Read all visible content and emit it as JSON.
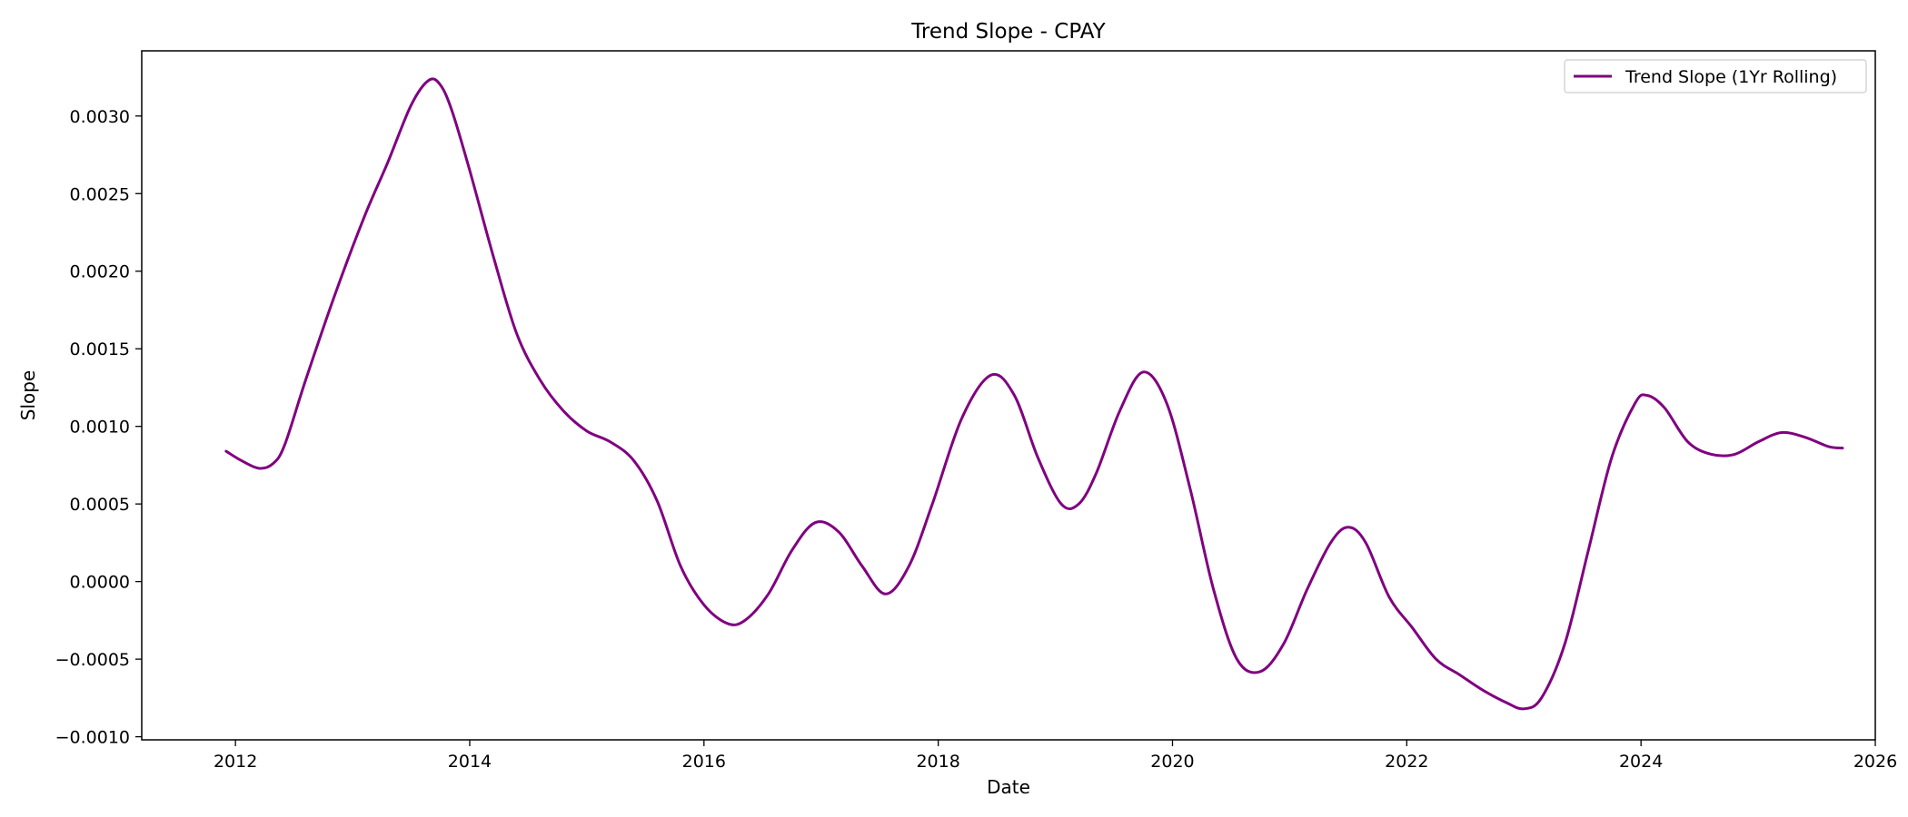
{
  "chart_data": {
    "type": "line",
    "title": "Trend Slope - CPAY",
    "xlabel": "Date",
    "ylabel": "Slope",
    "xlim": [
      2011.2,
      2026.0
    ],
    "ylim": [
      -0.00102,
      0.00342
    ],
    "x_ticks": [
      2012,
      2014,
      2016,
      2018,
      2020,
      2022,
      2024,
      2026
    ],
    "x_tick_labels": [
      "2012",
      "2014",
      "2016",
      "2018",
      "2020",
      "2022",
      "2024",
      "2026"
    ],
    "y_ticks": [
      -0.001,
      -0.0005,
      0.0,
      0.0005,
      0.001,
      0.0015,
      0.002,
      0.0025,
      0.003
    ],
    "y_tick_labels": [
      "−0.0010",
      "−0.0005",
      "0.0000",
      "0.0005",
      "0.0010",
      "0.0015",
      "0.0020",
      "0.0025",
      "0.0030"
    ],
    "grid": false,
    "legend_position": "top-right",
    "series": [
      {
        "name": "Trend Slope (1Yr Rolling)",
        "color": "#800080",
        "points": [
          [
            2011.92,
            0.00084
          ],
          [
            2012.05,
            0.00078
          ],
          [
            2012.2,
            0.00073
          ],
          [
            2012.32,
            0.00076
          ],
          [
            2012.42,
            0.00088
          ],
          [
            2012.6,
            0.0013
          ],
          [
            2012.85,
            0.00185
          ],
          [
            2013.1,
            0.00235
          ],
          [
            2013.3,
            0.0027
          ],
          [
            2013.5,
            0.00307
          ],
          [
            2013.65,
            0.00323
          ],
          [
            2013.75,
            0.0032
          ],
          [
            2013.85,
            0.00303
          ],
          [
            2014.0,
            0.00265
          ],
          [
            2014.2,
            0.0021
          ],
          [
            2014.4,
            0.0016
          ],
          [
            2014.6,
            0.0013
          ],
          [
            2014.8,
            0.0011
          ],
          [
            2015.0,
            0.00097
          ],
          [
            2015.2,
            0.0009
          ],
          [
            2015.4,
            0.00078
          ],
          [
            2015.6,
            0.00052
          ],
          [
            2015.8,
            0.0001
          ],
          [
            2016.0,
            -0.00015
          ],
          [
            2016.2,
            -0.00027
          ],
          [
            2016.35,
            -0.00025
          ],
          [
            2016.55,
            -8e-05
          ],
          [
            2016.75,
            0.0002
          ],
          [
            2016.95,
            0.00038
          ],
          [
            2017.15,
            0.00032
          ],
          [
            2017.35,
            0.0001
          ],
          [
            2017.55,
            -8e-05
          ],
          [
            2017.75,
            0.0001
          ],
          [
            2017.95,
            0.0005
          ],
          [
            2018.2,
            0.00105
          ],
          [
            2018.45,
            0.00133
          ],
          [
            2018.65,
            0.0012
          ],
          [
            2018.85,
            0.0008
          ],
          [
            2019.05,
            0.0005
          ],
          [
            2019.2,
            0.0005
          ],
          [
            2019.35,
            0.0007
          ],
          [
            2019.55,
            0.0011
          ],
          [
            2019.75,
            0.00135
          ],
          [
            2019.95,
            0.00115
          ],
          [
            2020.15,
            0.0006
          ],
          [
            2020.35,
            -5e-05
          ],
          [
            2020.55,
            -0.0005
          ],
          [
            2020.75,
            -0.00058
          ],
          [
            2020.95,
            -0.0004
          ],
          [
            2021.15,
            -5e-05
          ],
          [
            2021.35,
            0.00025
          ],
          [
            2021.5,
            0.00035
          ],
          [
            2021.65,
            0.00025
          ],
          [
            2021.85,
            -0.0001
          ],
          [
            2022.05,
            -0.0003
          ],
          [
            2022.25,
            -0.0005
          ],
          [
            2022.45,
            -0.0006
          ],
          [
            2022.65,
            -0.0007
          ],
          [
            2022.85,
            -0.00078
          ],
          [
            2023.0,
            -0.00082
          ],
          [
            2023.15,
            -0.00075
          ],
          [
            2023.35,
            -0.0004
          ],
          [
            2023.55,
            0.0002
          ],
          [
            2023.75,
            0.0008
          ],
          [
            2023.95,
            0.00115
          ],
          [
            2024.05,
            0.0012
          ],
          [
            2024.2,
            0.00112
          ],
          [
            2024.4,
            0.0009
          ],
          [
            2024.6,
            0.00082
          ],
          [
            2024.8,
            0.00082
          ],
          [
            2025.0,
            0.0009
          ],
          [
            2025.2,
            0.00096
          ],
          [
            2025.4,
            0.00093
          ],
          [
            2025.6,
            0.00087
          ],
          [
            2025.72,
            0.00086
          ]
        ]
      }
    ]
  }
}
